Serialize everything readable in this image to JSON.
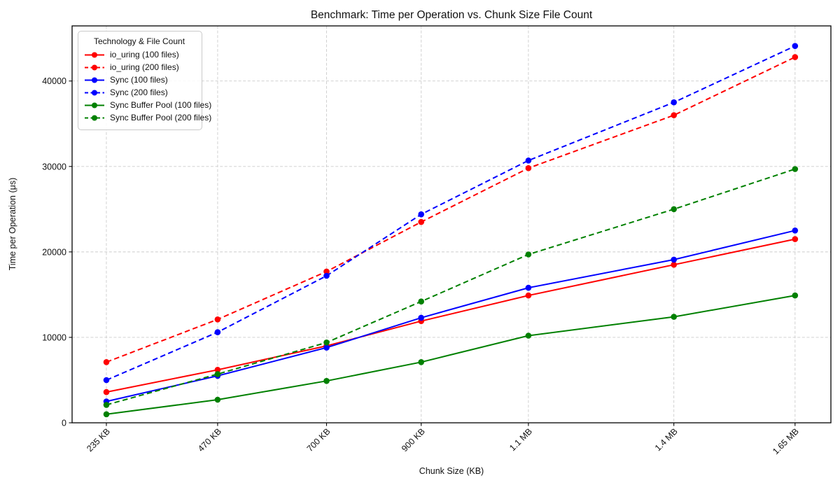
{
  "chart_data": {
    "type": "line",
    "title": "Benchmark: Time per Operation vs. Chunk Size File Count",
    "xlabel": "Chunk Size (KB)",
    "ylabel": "Time per Operation (μs)",
    "x_tick_labels": [
      "235 KB",
      "470 KB",
      "700 KB",
      "900 KB",
      "1.1 MB",
      "1.4 MB",
      "1.65 MB"
    ],
    "x_values_kb": [
      235,
      470,
      700,
      900,
      1126.4,
      1433.6,
      1689.6
    ],
    "xlim_kb": [
      162.6,
      1765.3
    ],
    "ylim": [
      0,
      46450
    ],
    "y_ticks": [
      0,
      10000,
      20000,
      30000,
      40000
    ],
    "grid": true,
    "legend": {
      "title": "Technology & File Count",
      "position": "upper-left"
    },
    "series": [
      {
        "name": "io_uring (100 files)",
        "color": "#ff0000",
        "style": "solid",
        "values": [
          3600,
          6200,
          9000,
          11900,
          14900,
          18500,
          21500
        ]
      },
      {
        "name": "io_uring (200 files)",
        "color": "#ff0000",
        "style": "dashed",
        "values": [
          7100,
          12100,
          17700,
          23500,
          29800,
          36000,
          42800
        ]
      },
      {
        "name": "Sync (100 files)",
        "color": "#0000ff",
        "style": "solid",
        "values": [
          2500,
          5500,
          8800,
          12300,
          15800,
          19100,
          22500
        ]
      },
      {
        "name": "Sync (200 files)",
        "color": "#0000ff",
        "style": "dashed",
        "values": [
          5000,
          10600,
          17200,
          24400,
          30700,
          37500,
          44100
        ]
      },
      {
        "name": "Sync Buffer Pool (100 files)",
        "color": "#008000",
        "style": "solid",
        "values": [
          1000,
          2700,
          4900,
          7100,
          10200,
          12400,
          14900
        ]
      },
      {
        "name": "Sync Buffer Pool (200 files)",
        "color": "#008000",
        "style": "dashed",
        "values": [
          2100,
          5700,
          9400,
          14200,
          19700,
          25000,
          29700
        ]
      }
    ],
    "colors": {
      "grid": "#cccccc",
      "spine": "#000000",
      "text": "#111111",
      "background": "#ffffff"
    }
  }
}
